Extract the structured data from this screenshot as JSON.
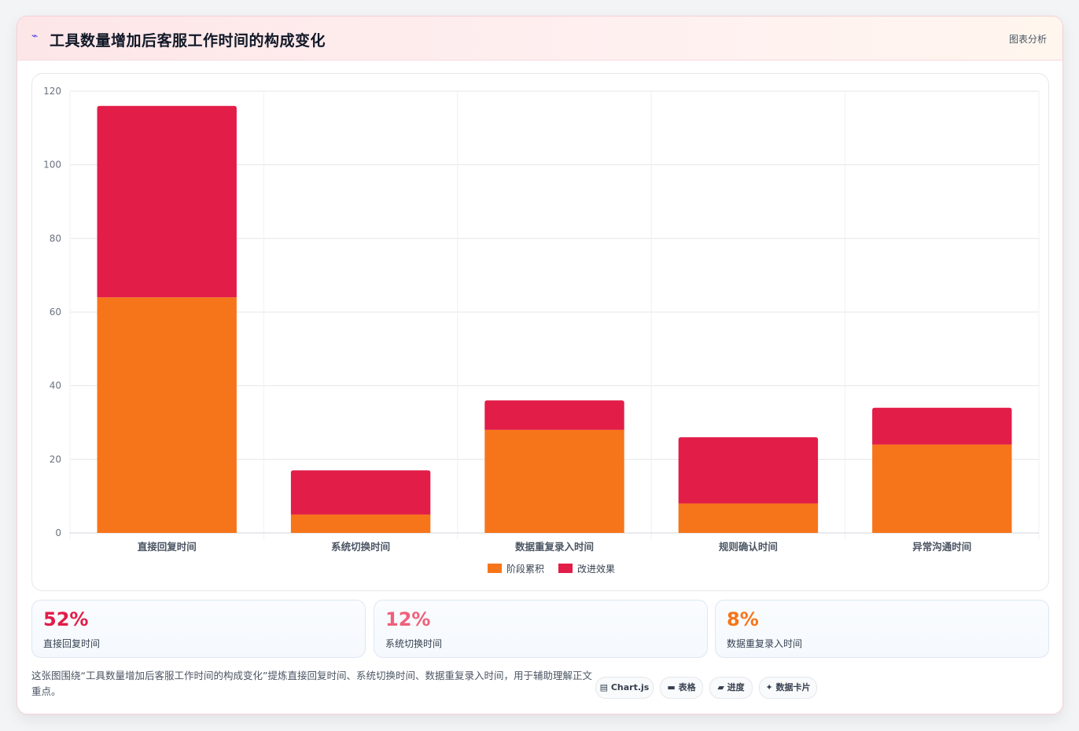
{
  "header": {
    "icon": "chart-icon",
    "title": "工具数量增加后客服工作时间的构成变化",
    "link_label": "图表分析"
  },
  "chart_data": {
    "type": "bar",
    "stacked": true,
    "categories": [
      "直接回复时间",
      "系统切换时间",
      "数据重复录入时间",
      "规则确认时间",
      "异常沟通时间"
    ],
    "series": [
      {
        "name": "阶段累积",
        "color": "#f7751a",
        "values": [
          64,
          5,
          28,
          8,
          24
        ]
      },
      {
        "name": "改进效果",
        "color": "#e11d48",
        "values": [
          52,
          12,
          8,
          18,
          10
        ]
      }
    ],
    "ylim": [
      0,
      120
    ],
    "yticks": [
      0,
      20,
      40,
      60,
      80,
      100,
      120
    ],
    "grid": true,
    "legend_position": "bottom"
  },
  "stats": [
    {
      "value": "52%",
      "label": "直接回复时间",
      "color": "#e11d48"
    },
    {
      "value": "12%",
      "label": "系统切换时间",
      "color": "#f0607a"
    },
    {
      "value": "8%",
      "label": "数据重复录入时间",
      "color": "#f7751a"
    }
  ],
  "footer": {
    "description": "这张图围绕“工具数量增加后客服工作时间的构成变化”提炼直接回复时间、系统切换时间、数据重复录入时间，用于辅助理解正文重点。",
    "pills": [
      {
        "icon": "chart-icon",
        "label": "▤ Chart.js"
      },
      {
        "icon": "table-icon",
        "label": "▬ 表格"
      },
      {
        "icon": "progress-icon",
        "label": "▰ 进度"
      },
      {
        "icon": "card-icon",
        "label": "✦ 数据卡片"
      }
    ]
  }
}
